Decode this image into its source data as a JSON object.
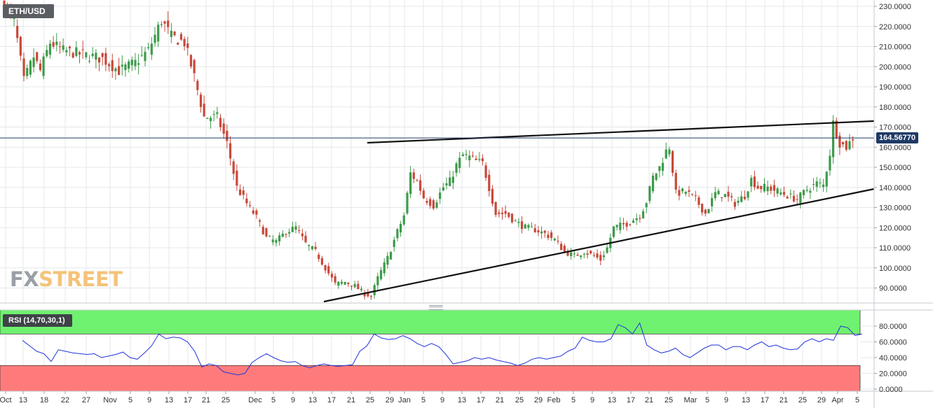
{
  "symbol": "ETH/USD",
  "brand": {
    "fx": "FX",
    "street": "STREET"
  },
  "last_price_label": "164.56770",
  "colors": {
    "up": "#3d9b4a",
    "down": "#c8493a",
    "trendline": "#111111",
    "price_line": "#1f3a66",
    "rsi_line": "#2233dd",
    "overbought_fill": "#6ff26f",
    "oversold_fill": "#ff7b7b",
    "grid": "#e4e7ea"
  },
  "rsi": {
    "label": "RSI (14,70,30,1)"
  },
  "chart_data": [
    {
      "type": "candlestick",
      "title": "ETH/USD",
      "ylim": [
        81,
        233
      ],
      "y_ticks": [
        "230.0000",
        "220.0000",
        "210.0000",
        "200.0000",
        "190.0000",
        "180.0000",
        "170.0000",
        "160.0000",
        "150.0000",
        "140.0000",
        "130.0000",
        "120.0000",
        "110.0000",
        "100.0000",
        "90.0000"
      ],
      "x_tick_labels": [
        "Oct",
        "13",
        "18",
        "22",
        "27",
        "Nov",
        "5",
        "9",
        "13",
        "17",
        "21",
        "25",
        "Dec",
        "5",
        "9",
        "13",
        "17",
        "21",
        "25",
        "29",
        "Jan",
        "5",
        "9",
        "13",
        "17",
        "21",
        "25",
        "29",
        "Feb",
        "5",
        "9",
        "13",
        "17",
        "21",
        "25",
        "Mar",
        "5",
        "9",
        "13",
        "17",
        "21",
        "25",
        "29",
        "Apr",
        "5"
      ],
      "last_price": 164.5677,
      "price_path": [
        [
          0,
          230
        ],
        [
          3,
          223
        ],
        [
          6,
          193
        ],
        [
          9,
          205
        ],
        [
          11,
          198
        ],
        [
          14,
          212
        ],
        [
          18,
          208
        ],
        [
          24,
          206
        ],
        [
          30,
          204
        ],
        [
          35,
          198
        ],
        [
          40,
          202
        ],
        [
          44,
          208
        ],
        [
          48,
          223
        ],
        [
          51,
          215
        ],
        [
          55,
          212
        ],
        [
          58,
          195
        ],
        [
          61,
          175
        ],
        [
          65,
          175
        ],
        [
          68,
          162
        ],
        [
          71,
          140
        ],
        [
          74,
          132
        ],
        [
          77,
          125
        ],
        [
          80,
          115
        ],
        [
          83,
          113
        ],
        [
          86,
          118
        ],
        [
          89,
          120
        ],
        [
          92,
          112
        ],
        [
          95,
          108
        ],
        [
          98,
          100
        ],
        [
          101,
          92
        ],
        [
          104,
          93
        ],
        [
          107,
          91
        ],
        [
          110,
          87
        ],
        [
          112,
          86
        ],
        [
          114,
          95
        ],
        [
          117,
          105
        ],
        [
          120,
          118
        ],
        [
          122,
          126
        ],
        [
          124,
          147
        ],
        [
          126,
          143
        ],
        [
          128,
          135
        ],
        [
          131,
          131
        ],
        [
          134,
          140
        ],
        [
          136,
          143
        ],
        [
          138,
          151
        ],
        [
          140,
          156
        ],
        [
          142,
          155
        ],
        [
          144,
          153
        ],
        [
          146,
          152
        ],
        [
          148,
          140
        ],
        [
          150,
          127
        ],
        [
          153,
          127
        ],
        [
          156,
          123
        ],
        [
          159,
          120
        ],
        [
          162,
          119
        ],
        [
          165,
          117
        ],
        [
          168,
          114
        ],
        [
          171,
          108
        ],
        [
          174,
          106
        ],
        [
          177,
          108
        ],
        [
          180,
          106
        ],
        [
          182,
          104
        ],
        [
          184,
          110
        ],
        [
          186,
          120
        ],
        [
          188,
          121
        ],
        [
          190,
          122
        ],
        [
          192,
          124
        ],
        [
          194,
          126
        ],
        [
          196,
          133
        ],
        [
          198,
          145
        ],
        [
          200,
          150
        ],
        [
          202,
          158
        ],
        [
          203,
          160
        ],
        [
          205,
          137
        ],
        [
          208,
          138
        ],
        [
          211,
          134
        ],
        [
          214,
          127
        ],
        [
          217,
          137
        ],
        [
          220,
          136
        ],
        [
          223,
          132
        ],
        [
          226,
          136
        ],
        [
          228,
          144
        ],
        [
          230,
          140
        ],
        [
          233,
          140
        ],
        [
          236,
          138
        ],
        [
          239,
          136
        ],
        [
          242,
          134
        ],
        [
          245,
          139
        ],
        [
          248,
          142
        ],
        [
          250,
          141
        ],
        [
          252,
          157
        ],
        [
          253,
          172
        ],
        [
          255,
          162
        ],
        [
          257,
          160
        ],
        [
          259,
          164.5677
        ]
      ]
    },
    {
      "type": "line",
      "title": "RSI (14,70,30,1)",
      "ylim": [
        0,
        90
      ],
      "y_ticks": [
        "80.0000",
        "60.0000",
        "40.0000",
        "20.0000",
        "0.0000"
      ],
      "overbought": 70,
      "oversold": 30,
      "values": [
        62,
        55,
        48,
        45,
        35,
        50,
        48,
        46,
        45,
        44,
        45,
        40,
        42,
        44,
        47,
        40,
        38,
        46,
        55,
        70,
        64,
        66,
        65,
        60,
        48,
        28,
        32,
        30,
        22,
        20,
        18,
        20,
        34,
        40,
        45,
        40,
        36,
        34,
        35,
        30,
        27,
        30,
        32,
        30,
        29,
        30,
        31,
        48,
        55,
        70,
        65,
        63,
        64,
        68,
        64,
        58,
        54,
        58,
        54,
        44,
        32,
        34,
        36,
        40,
        38,
        40,
        37,
        35,
        33,
        30,
        33,
        38,
        40,
        38,
        40,
        42,
        48,
        52,
        66,
        62,
        60,
        60,
        64,
        82,
        78,
        70,
        84,
        56,
        50,
        46,
        48,
        52,
        44,
        40,
        46,
        52,
        56,
        56,
        50,
        54,
        54,
        50,
        56,
        60,
        54,
        56,
        52,
        50,
        51,
        60,
        64,
        60,
        64,
        62,
        80,
        78,
        68,
        70
      ]
    }
  ]
}
